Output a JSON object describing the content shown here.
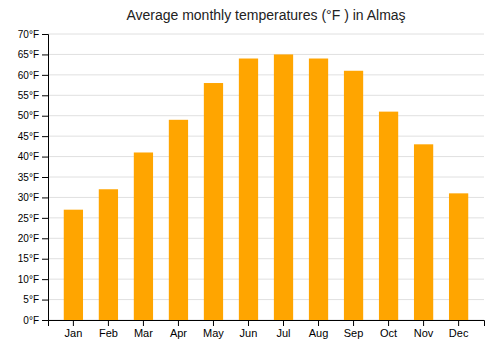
{
  "chart_data": {
    "type": "bar",
    "title": "Average monthly temperatures (°F ) in Almaş",
    "categories": [
      "Jan",
      "Feb",
      "Mar",
      "Apr",
      "May",
      "Jun",
      "Jul",
      "Aug",
      "Sep",
      "Oct",
      "Nov",
      "Dec"
    ],
    "values": [
      27,
      32,
      41,
      49,
      58,
      64,
      65,
      64,
      61,
      51,
      43,
      31
    ],
    "color": "#FFA500",
    "ylim": [
      0,
      70
    ],
    "yticks": [
      {
        "value": 0,
        "label": "0°F"
      },
      {
        "value": 5,
        "label": "5°F"
      },
      {
        "value": 10,
        "label": "10°F"
      },
      {
        "value": 15,
        "label": "15°F"
      },
      {
        "value": 20,
        "label": "20°F"
      },
      {
        "value": 25,
        "label": "25°F"
      },
      {
        "value": 30,
        "label": "30°F"
      },
      {
        "value": 35,
        "label": "35°F"
      },
      {
        "value": 40,
        "label": "40°F"
      },
      {
        "value": 45,
        "label": "45°F"
      },
      {
        "value": 50,
        "label": "50°F"
      },
      {
        "value": 55,
        "label": "55°F"
      },
      {
        "value": 60,
        "label": "60°F"
      },
      {
        "value": 65,
        "label": "65°F"
      },
      {
        "value": 70,
        "label": "70°F"
      }
    ],
    "grid": true
  }
}
